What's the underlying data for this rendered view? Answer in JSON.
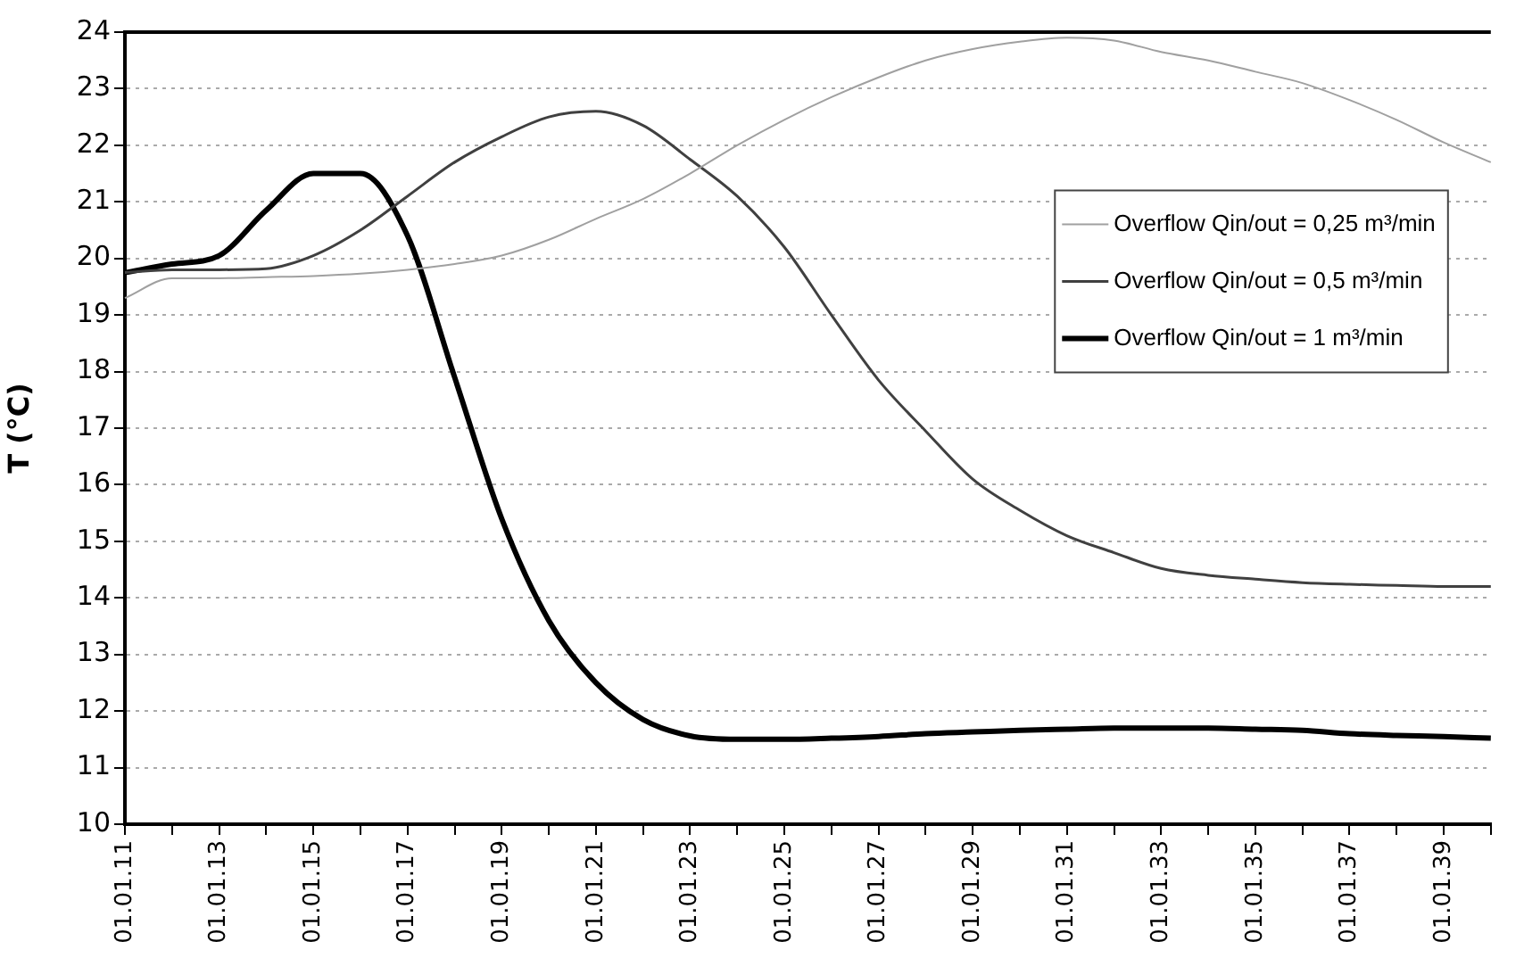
{
  "chart_data": {
    "type": "line",
    "ylabel": "T (°C)",
    "ylim": [
      10,
      24
    ],
    "categories": [
      "01.01.11",
      null,
      "01.01.13",
      null,
      "01.01.15",
      null,
      "01.01.17",
      null,
      "01.01.19",
      null,
      "01.01.21",
      null,
      "01.01.23",
      null,
      "01.01.25",
      null,
      "01.01.27",
      null,
      "01.01.29",
      null,
      "01.01.31",
      null,
      "01.01.33",
      null,
      "01.01.35",
      null,
      "01.01.37",
      null,
      "01.01.39",
      null
    ],
    "yticks": [
      10,
      11,
      12,
      13,
      14,
      15,
      16,
      17,
      18,
      19,
      20,
      21,
      22,
      23,
      24
    ],
    "grid": "y",
    "legend": "right",
    "marker": "none",
    "line_style": "solid",
    "series": [
      {
        "name": "Overflow Qin/out = 0,25 m³/min",
        "color": "#a0a0a0",
        "values": [
          19.3,
          19.65,
          19.65,
          19.67,
          19.69,
          19.73,
          19.8,
          19.9,
          20.05,
          20.33,
          20.7,
          21.05,
          21.5,
          22.0,
          22.45,
          22.85,
          23.2,
          23.5,
          23.7,
          23.83,
          23.9,
          23.85,
          23.65,
          23.5,
          23.3,
          23.1,
          22.8,
          22.45,
          22.05,
          21.7
        ]
      },
      {
        "name": "Overflow Qin/out = 0,5 m³/min",
        "color": "#404040",
        "values": [
          19.75,
          19.8,
          19.8,
          19.82,
          20.05,
          20.5,
          21.1,
          21.7,
          22.15,
          22.5,
          22.6,
          22.35,
          21.75,
          21.1,
          20.2,
          19.0,
          17.85,
          16.95,
          16.1,
          15.55,
          15.1,
          14.8,
          14.52,
          14.4,
          14.33,
          14.27,
          14.24,
          14.22,
          14.2,
          14.2
        ]
      },
      {
        "name": "Overflow Qin/out = 1 m³/min",
        "color": "#000000",
        "values": [
          19.75,
          19.9,
          20.05,
          20.85,
          21.5,
          21.5,
          20.4,
          17.9,
          15.4,
          13.6,
          12.5,
          11.85,
          11.56,
          11.5,
          11.5,
          11.52,
          11.55,
          11.6,
          11.63,
          11.66,
          11.68,
          11.7,
          11.7,
          11.7,
          11.68,
          11.66,
          11.6,
          11.57,
          11.55,
          11.52
        ]
      }
    ]
  }
}
